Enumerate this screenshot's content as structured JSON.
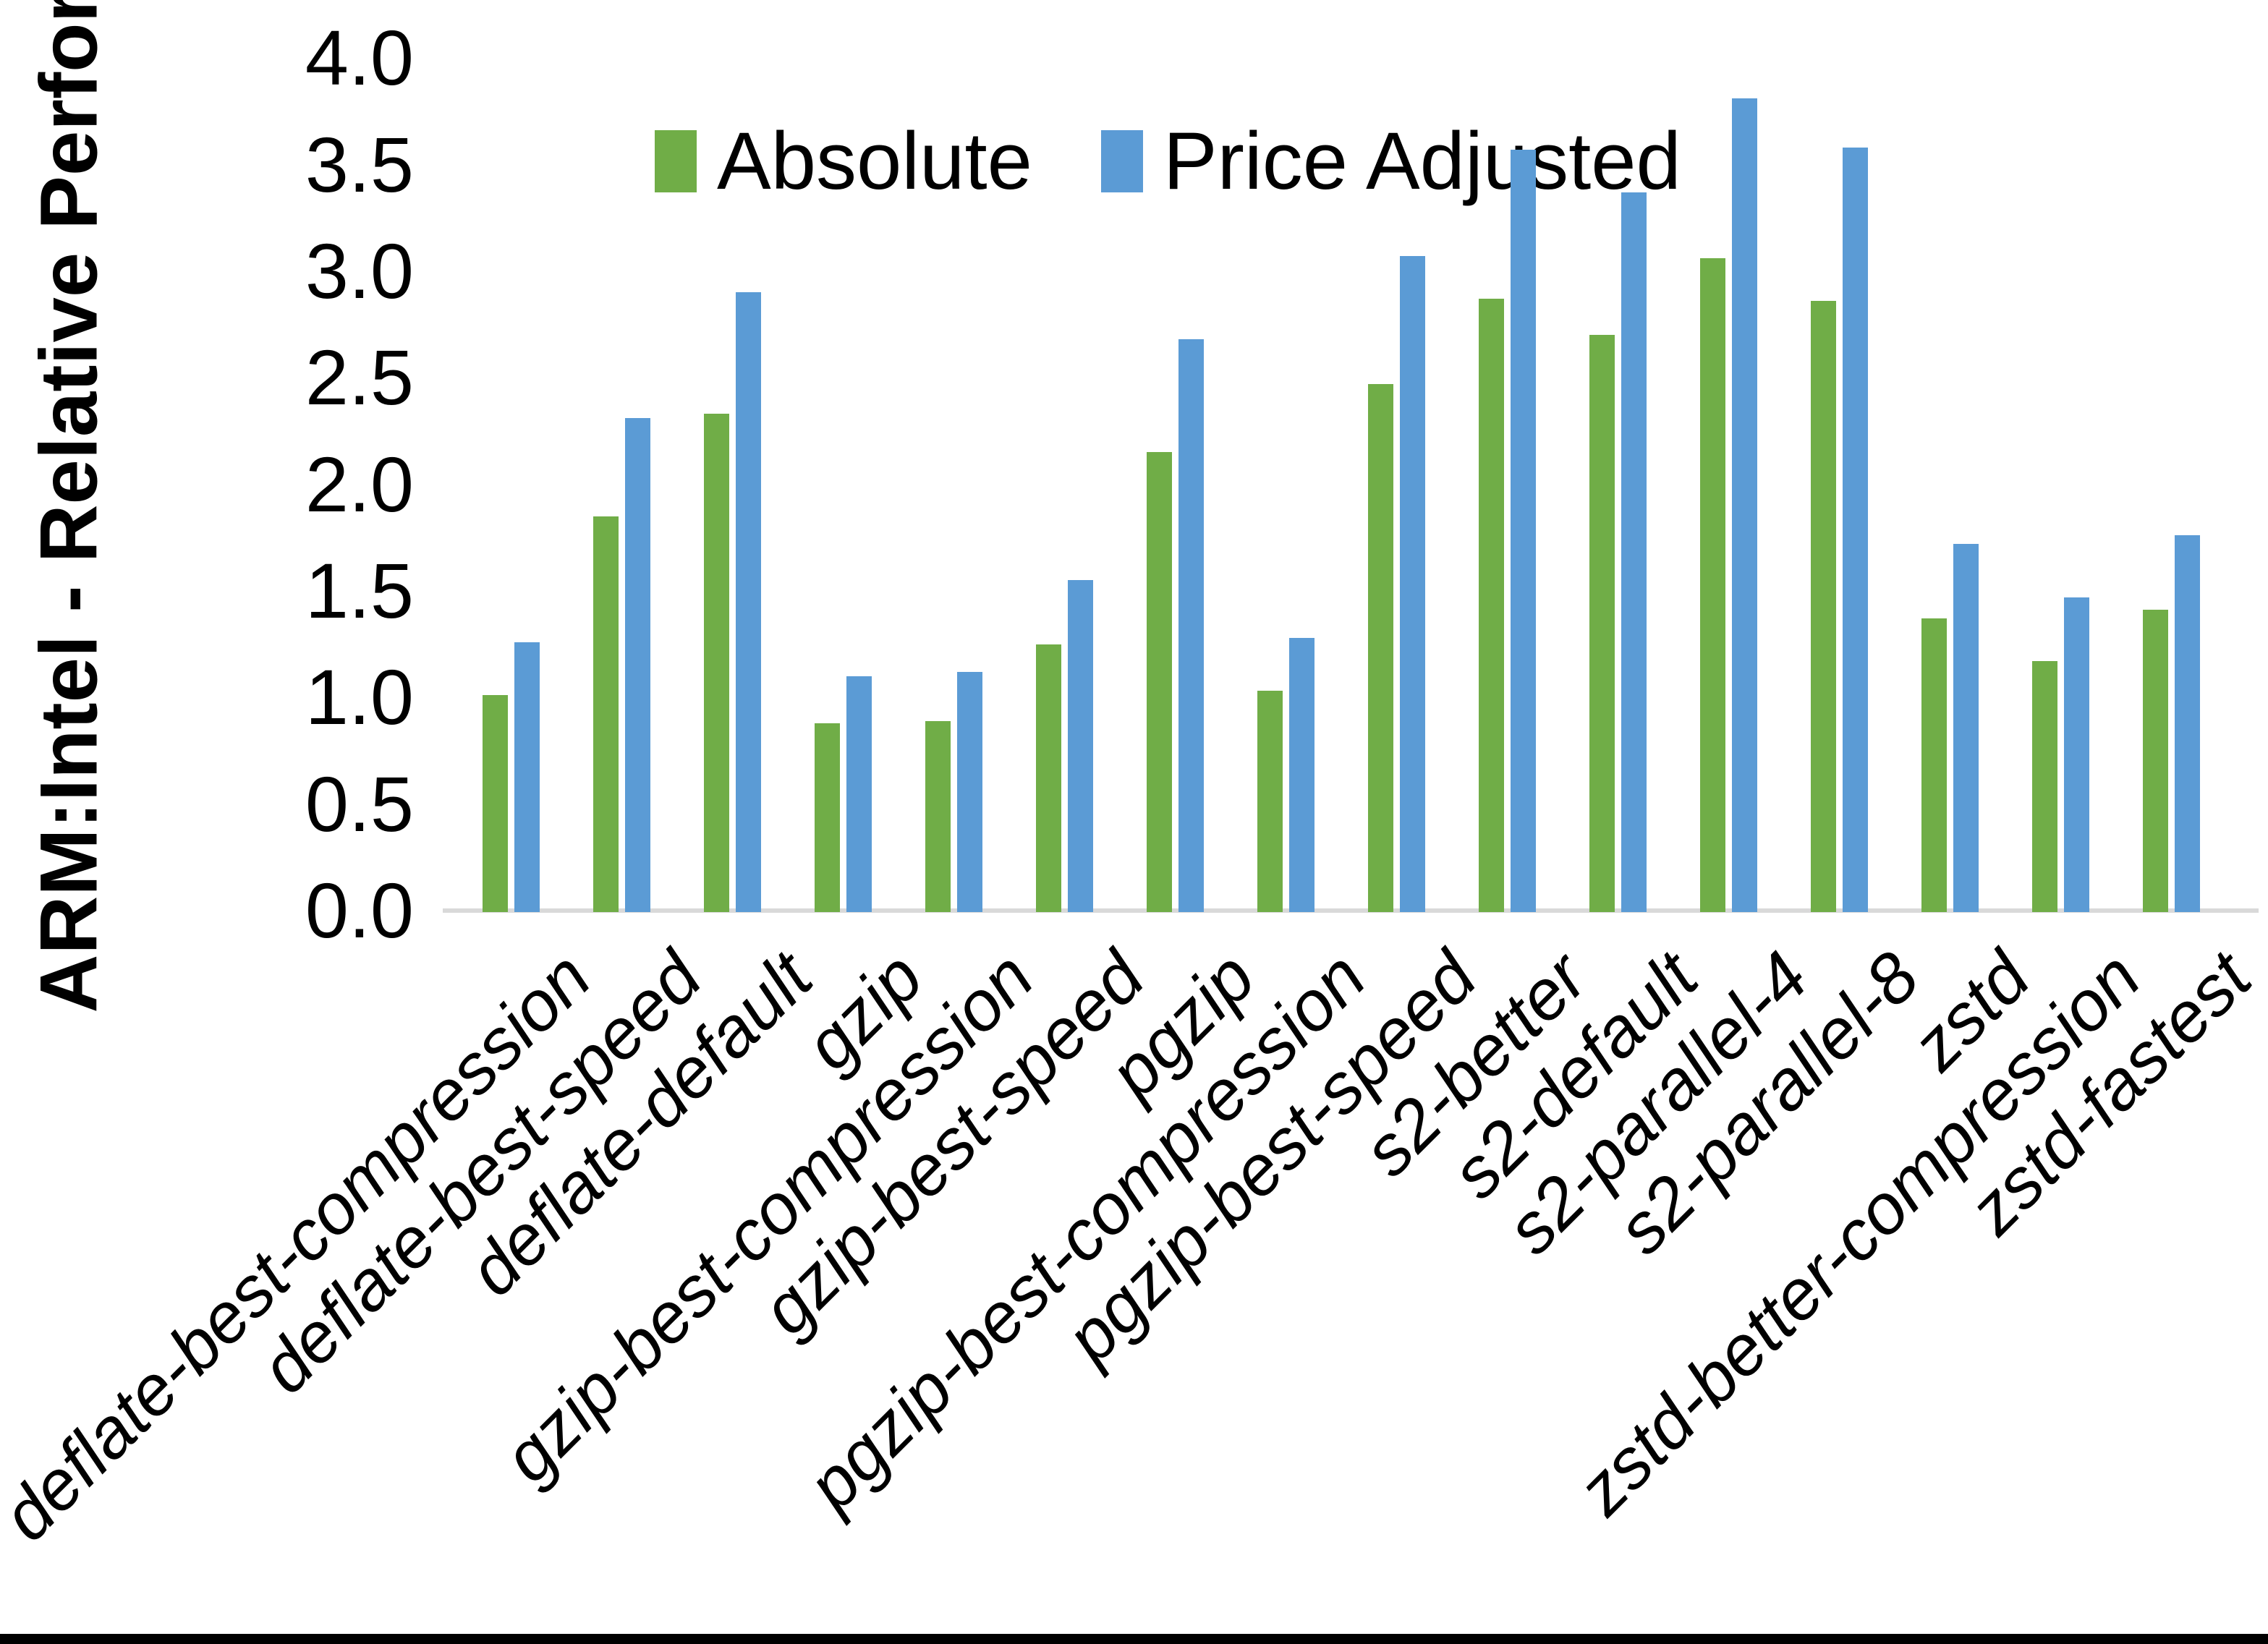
{
  "chart_data": {
    "type": "bar",
    "title": "",
    "xlabel": "",
    "ylabel": "ARM:Intel - Relative Performance",
    "ylim": [
      0.0,
      4.0
    ],
    "yticks": [
      "0.0",
      "0.5",
      "1.0",
      "1.5",
      "2.0",
      "2.5",
      "3.0",
      "3.5",
      "4.0"
    ],
    "grid": false,
    "legend_position": "top-center",
    "categories": [
      "deflate-best-compression",
      "deflate-best-speed",
      "deflate-default",
      "gzip",
      "gzip-best-compression",
      "gzip-best-speed",
      "pgzip",
      "pgzip-best-compression",
      "pgzip-best-speed",
      "s2-better",
      "s2-default",
      "s2-parallel-4",
      "s2-parallel-8",
      "zstd",
      "zstd-better-compression",
      "zstd-fastest"
    ],
    "series": [
      {
        "name": "Absolute",
        "color": "#70AD47",
        "values": [
          1.01,
          1.85,
          2.33,
          0.88,
          0.89,
          1.25,
          2.15,
          1.03,
          2.47,
          2.87,
          2.7,
          3.06,
          2.86,
          1.37,
          1.17,
          1.41
        ]
      },
      {
        "name": "Price Adjusted",
        "color": "#5B9BD5",
        "values": [
          1.26,
          2.31,
          2.9,
          1.1,
          1.12,
          1.55,
          2.68,
          1.28,
          3.07,
          3.57,
          3.37,
          3.81,
          3.58,
          1.72,
          1.47,
          1.76
        ]
      }
    ],
    "axis_color": "#D9D9D9",
    "text_color": "#000000"
  }
}
